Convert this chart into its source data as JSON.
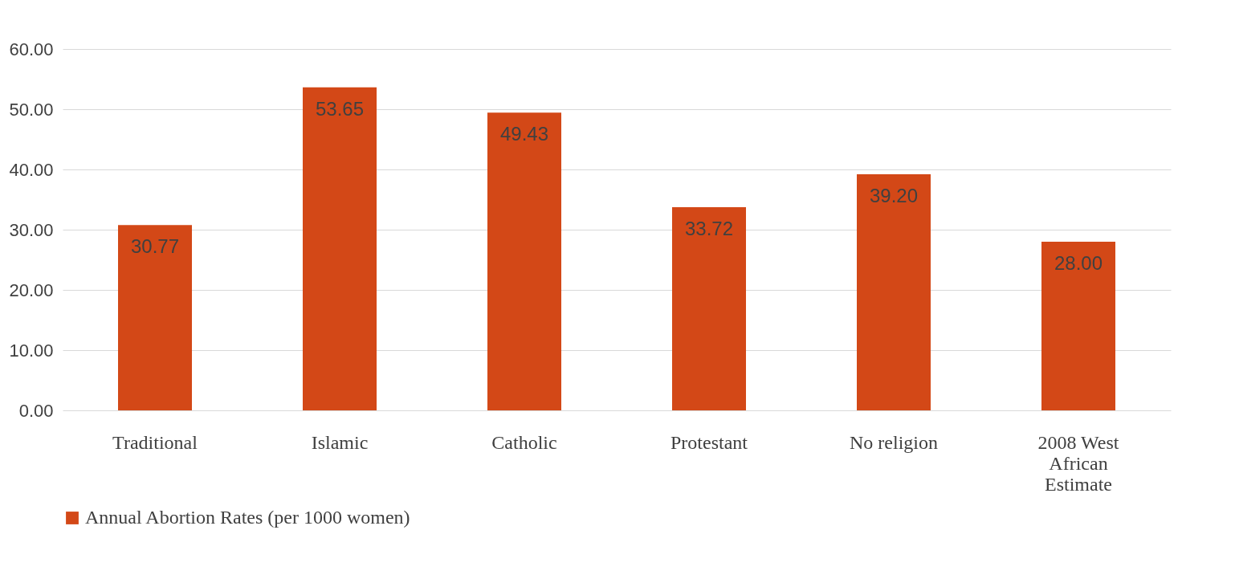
{
  "chart_data": {
    "type": "bar",
    "categories": [
      "Traditional",
      "Islamic",
      "Catholic",
      "Protestant",
      "No religion",
      "2008 West African Estimate"
    ],
    "series": [
      {
        "name": "Annual Abortion Rates (per 1000 women)",
        "color": "#d34817",
        "values": [
          30.77,
          53.65,
          49.43,
          33.72,
          39.2,
          28.0
        ]
      }
    ],
    "value_labels": [
      "30.77",
      "53.65",
      "49.43",
      "33.72",
      "39.20",
      "28.00"
    ],
    "ylim": [
      0,
      60
    ],
    "yticks": [
      {
        "value": 0,
        "label": "0.00"
      },
      {
        "value": 10,
        "label": "10.00"
      },
      {
        "value": 20,
        "label": "20.00"
      },
      {
        "value": 30,
        "label": "30.00"
      },
      {
        "value": 40,
        "label": "40.00"
      },
      {
        "value": 50,
        "label": "50.00"
      },
      {
        "value": 60,
        "label": "60.00"
      }
    ],
    "grid": "y",
    "legend": "bottom"
  }
}
